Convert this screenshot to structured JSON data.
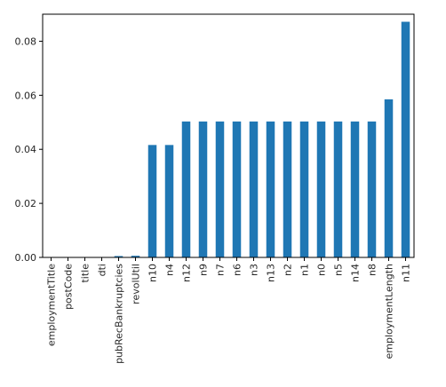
{
  "chart_data": {
    "type": "bar",
    "title": "",
    "xlabel": "",
    "ylabel": "",
    "ylim": [
      0,
      0.09
    ],
    "y_ticks": [
      0.0,
      0.02,
      0.04,
      0.06,
      0.08
    ],
    "y_tick_labels": [
      "0.00",
      "0.02",
      "0.04",
      "0.06",
      "0.08"
    ],
    "grid": false,
    "legend": "none",
    "bar_color": "#1f77b4",
    "categories": [
      "employmentTitle",
      "postCode",
      "title",
      "dti",
      "pubRecBankruptcies",
      "revolUtil",
      "n10",
      "n4",
      "n12",
      "n9",
      "n7",
      "n6",
      "n3",
      "n13",
      "n2",
      "n1",
      "n0",
      "n5",
      "n14",
      "n8",
      "employmentLength",
      "n11"
    ],
    "values": [
      0.0,
      0.0,
      0.0,
      0.0001,
      0.0005,
      0.0006,
      0.0416,
      0.0416,
      0.0503,
      0.0503,
      0.0503,
      0.0503,
      0.0503,
      0.0503,
      0.0503,
      0.0503,
      0.0503,
      0.0503,
      0.0503,
      0.0503,
      0.0585,
      0.0872
    ]
  }
}
